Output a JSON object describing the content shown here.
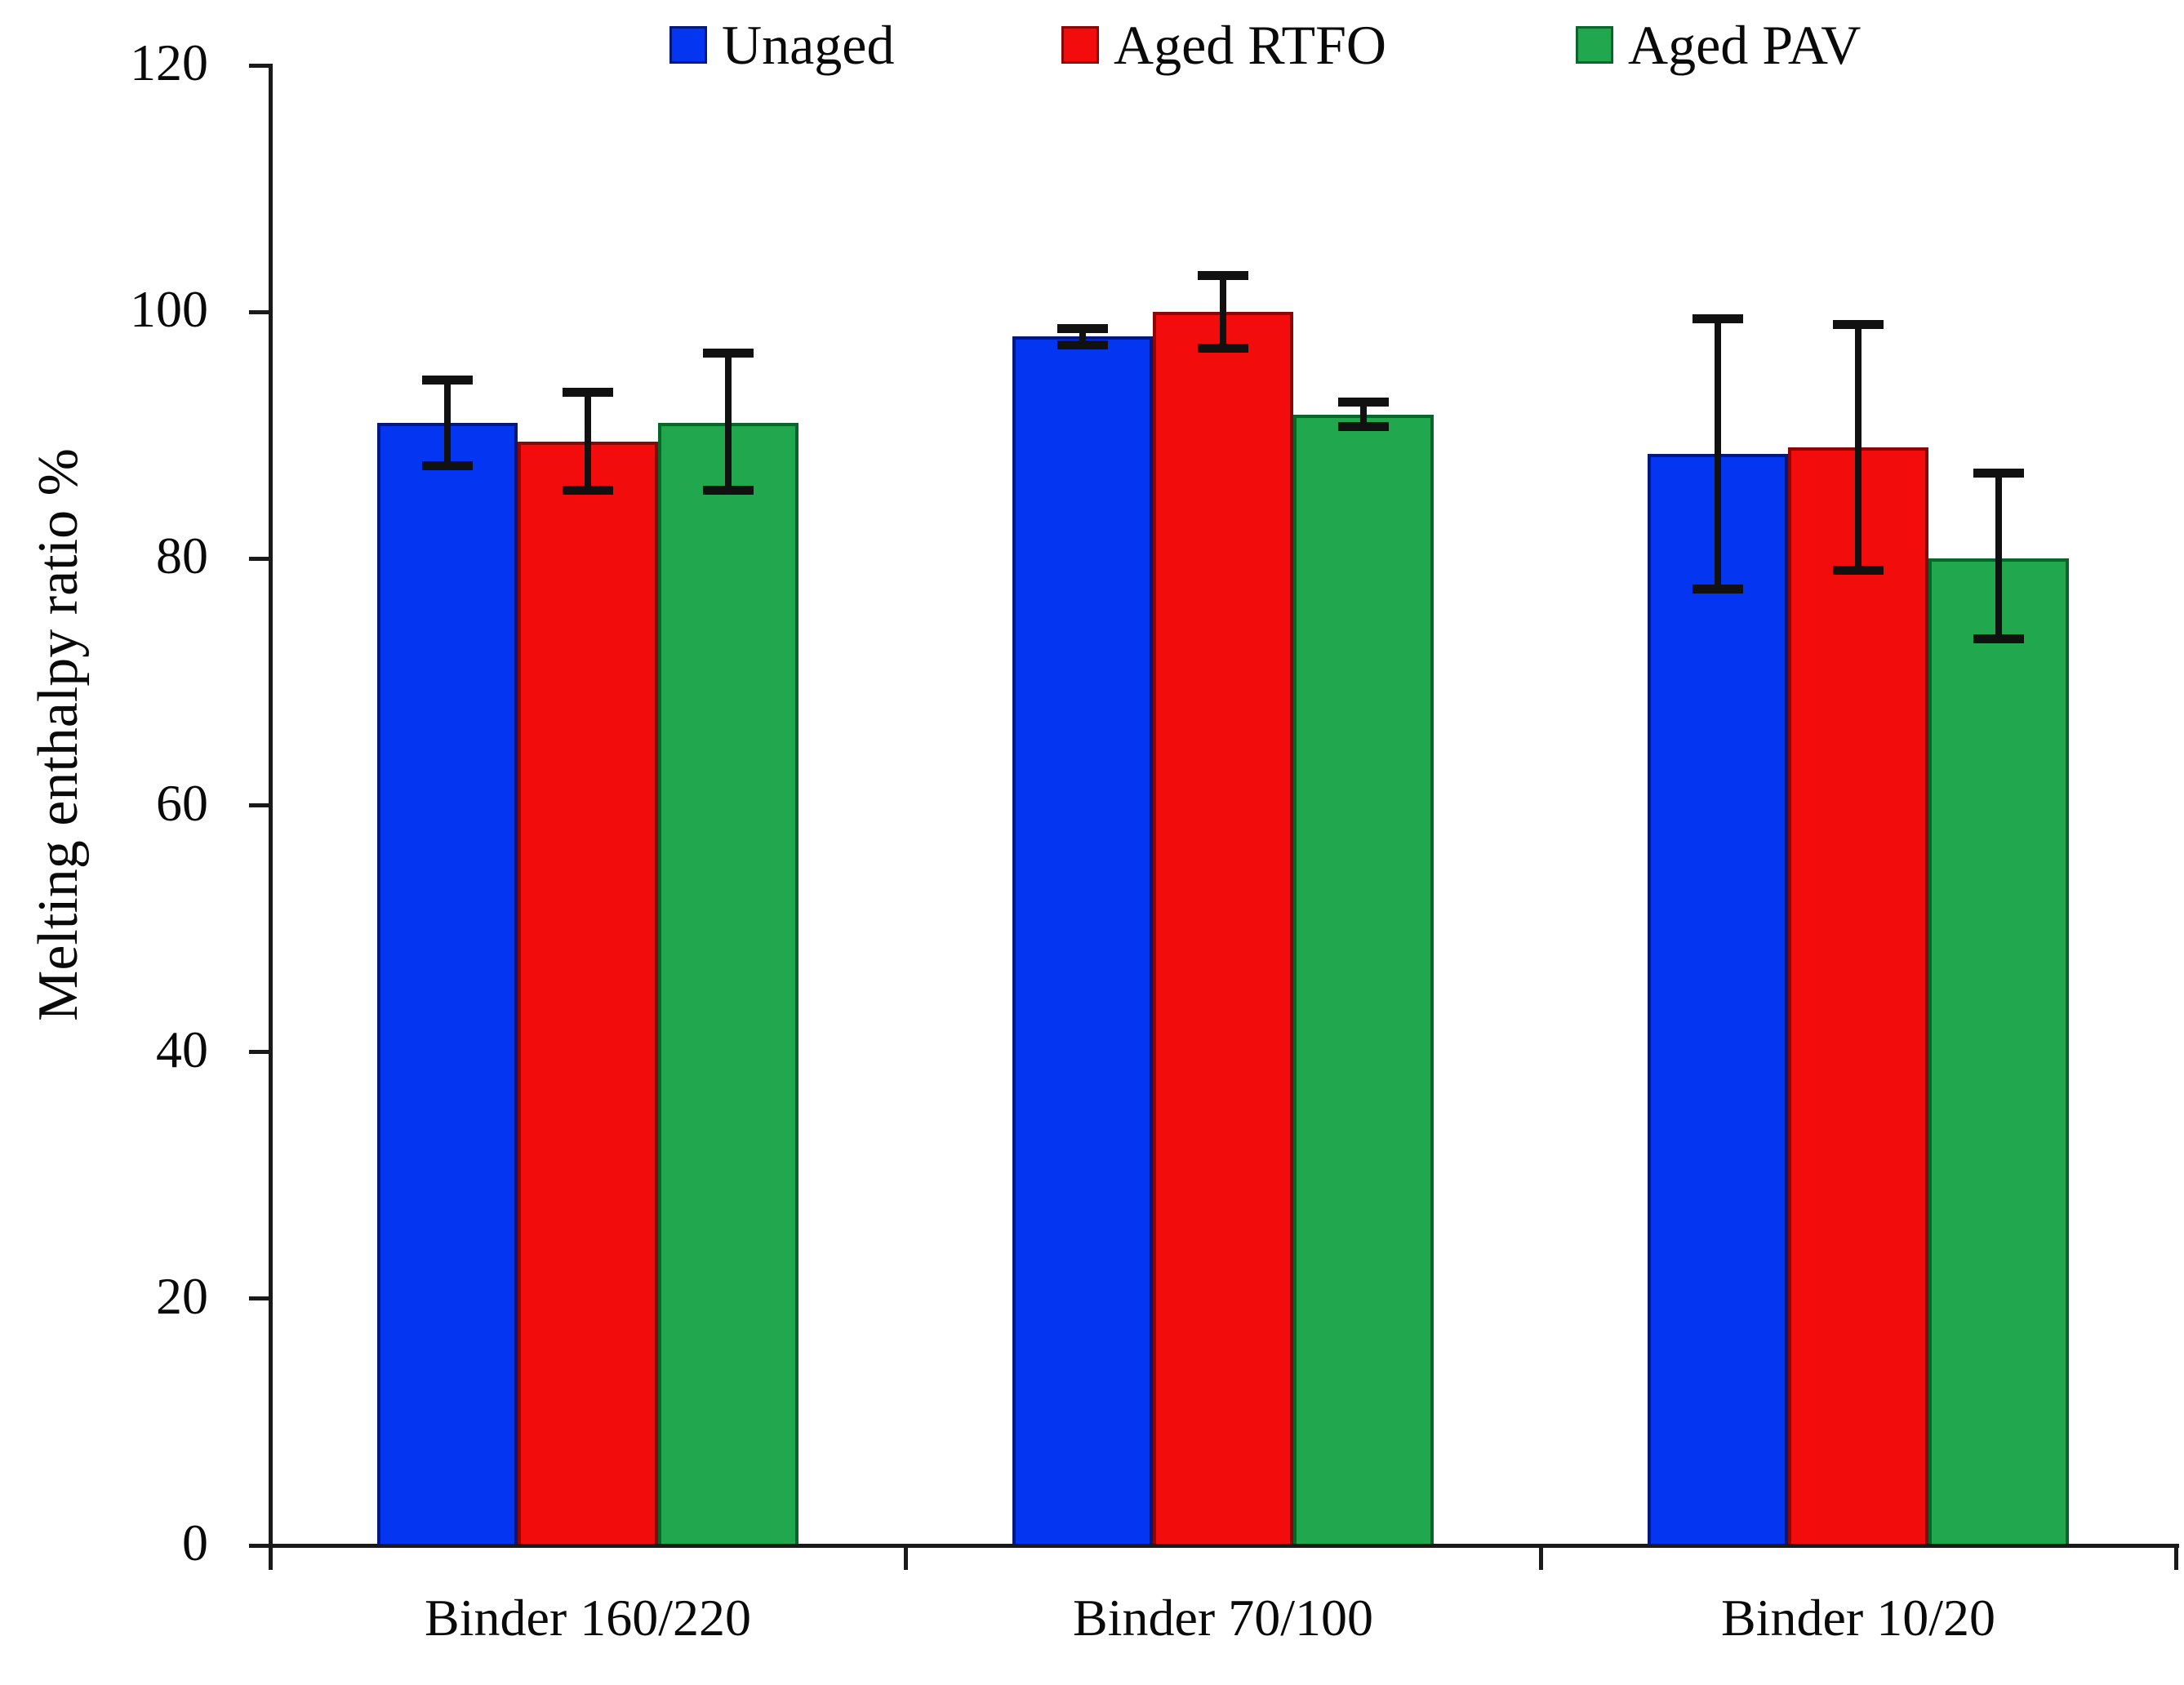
{
  "chart_data": {
    "type": "bar",
    "title": "",
    "ylabel": "Melting enthalpy ratio %",
    "xlabel": "",
    "categories": [
      "Binder 160/220",
      "Binder 70/100",
      "Binder 10/20"
    ],
    "series": [
      {
        "name": "Unaged",
        "color": "#0435f0",
        "border_color": "#02187f",
        "values": [
          91,
          98,
          88.5
        ],
        "err_plus": [
          3.5,
          0.7,
          11
        ],
        "err_minus": [
          3.5,
          0.7,
          11
        ]
      },
      {
        "name": "Aged RTFO",
        "color": "#f20c0c",
        "border_color": "#8f0404",
        "values": [
          89.5,
          100,
          89
        ],
        "err_plus": [
          4,
          3,
          10
        ],
        "err_minus": [
          4,
          3,
          10
        ]
      },
      {
        "name": "Aged PAV",
        "color": "#21a84e",
        "border_color": "#07662a",
        "values": [
          91,
          91.7,
          80
        ],
        "err_plus": [
          5.7,
          1,
          7
        ],
        "err_minus": [
          5.5,
          1,
          6.5
        ]
      }
    ],
    "yticks": [
      0,
      20,
      40,
      60,
      80,
      100,
      120
    ],
    "ylim": [
      0,
      120
    ],
    "legend_position": "top",
    "grid": false,
    "error_bars": true
  }
}
